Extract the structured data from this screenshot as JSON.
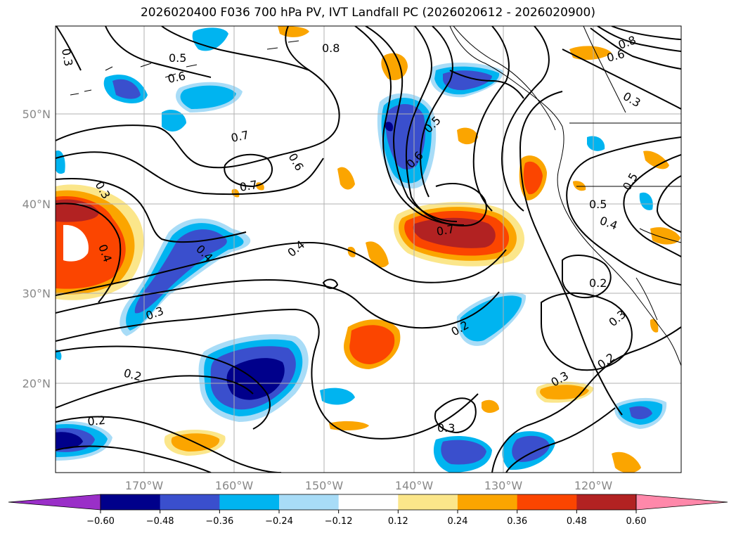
{
  "title": "2026020400 F036 700 hPa PV, IVT Landfall PC (2026020612 - 2026020900)",
  "lat_labels": [
    "50°N",
    "40°N",
    "30°N",
    "20°N"
  ],
  "lon_labels": [
    "170°W",
    "160°W",
    "150°W",
    "140°W",
    "130°W",
    "120°W"
  ],
  "contour_labels": [
    "0.8",
    "0.5",
    "0.6",
    "0.7",
    "0.7",
    "0.6",
    "0.5",
    "0.6",
    "0.7",
    "0.4",
    "0.4",
    "0.4",
    "0.3",
    "0.3",
    "0.2",
    "0.2",
    "0.2",
    "0.3",
    "0.3",
    "0.2",
    "0.3",
    "0.2",
    "0.4",
    "0.5",
    "0.5",
    "0.6",
    "0.8",
    "0.3",
    "0.3"
  ],
  "colorbar": {
    "ticks": [
      "−0.60",
      "−0.48",
      "−0.36",
      "−0.24",
      "−0.12",
      "0.12",
      "0.24",
      "0.36",
      "0.48",
      "0.60"
    ],
    "colors": [
      "#9a2fc8",
      "#00008b",
      "#3a4fcd",
      "#00b4f0",
      "#a8dcf7",
      "#ffffff",
      "#fbe68a",
      "#fba500",
      "#fb4500",
      "#b22222",
      "#ff88aa"
    ]
  }
}
